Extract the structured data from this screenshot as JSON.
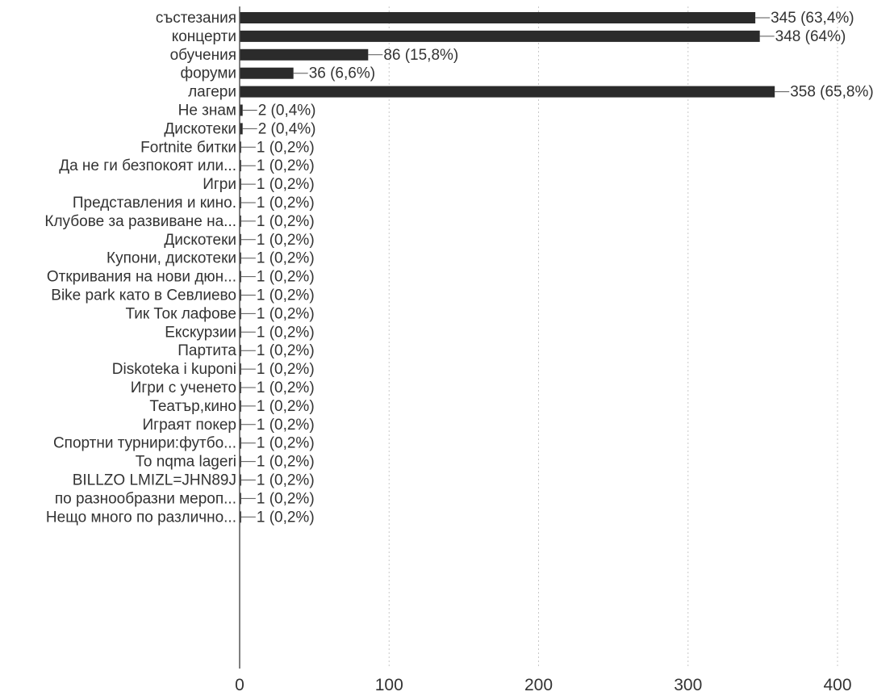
{
  "chart_data": {
    "type": "bar",
    "orientation": "horizontal",
    "colors": {
      "bar": "#2b2b2b",
      "grid": "#c8c8c8",
      "text": "#333333"
    },
    "xlim": [
      0,
      400
    ],
    "xticks": [
      0,
      100,
      200,
      300,
      400
    ],
    "grid": true,
    "bars": [
      {
        "category": "състезания",
        "value": 345,
        "label": "345 (63,4%)"
      },
      {
        "category": "концерти",
        "value": 348,
        "label": "348 (64%)"
      },
      {
        "category": "обучения",
        "value": 86,
        "label": "86 (15,8%)"
      },
      {
        "category": "форуми",
        "value": 36,
        "label": "36 (6,6%)"
      },
      {
        "category": "лагери",
        "value": 358,
        "label": "358 (65,8%)"
      },
      {
        "category": "Не знам",
        "value": 2,
        "label": "2 (0,4%)"
      },
      {
        "category": "Дискотеки",
        "value": 2,
        "label": "2 (0,4%)"
      },
      {
        "category": "Fortnite битки",
        "value": 1,
        "label": "1 (0,2%)"
      },
      {
        "category": "Да не ги безпокоят или...",
        "value": 1,
        "label": "1 (0,2%)"
      },
      {
        "category": "Игри",
        "value": 1,
        "label": "1 (0,2%)"
      },
      {
        "category": "Представления и кино.",
        "value": 1,
        "label": "1 (0,2%)"
      },
      {
        "category": "Клубове за развиване на...",
        "value": 1,
        "label": "1 (0,2%)"
      },
      {
        "category": "Дискотеки",
        "value": 1,
        "label": "1 (0,2%)"
      },
      {
        "category": "Купони, дискотеки",
        "value": 1,
        "label": "1 (0,2%)"
      },
      {
        "category": "Откривания на нови дюн...",
        "value": 1,
        "label": "1 (0,2%)"
      },
      {
        "category": "Bike park като в Севлиево",
        "value": 1,
        "label": "1 (0,2%)"
      },
      {
        "category": "Тик Ток лафове",
        "value": 1,
        "label": "1 (0,2%)"
      },
      {
        "category": "Екскурзии",
        "value": 1,
        "label": "1 (0,2%)"
      },
      {
        "category": "Партита",
        "value": 1,
        "label": "1 (0,2%)"
      },
      {
        "category": "Diskoteka i kuponi",
        "value": 1,
        "label": "1 (0,2%)"
      },
      {
        "category": "Игри с ученето",
        "value": 1,
        "label": "1 (0,2%)"
      },
      {
        "category": "Театър,кино",
        "value": 1,
        "label": "1 (0,2%)"
      },
      {
        "category": "Играят покер",
        "value": 1,
        "label": "1 (0,2%)"
      },
      {
        "category": "Спортни турнири:футбо...",
        "value": 1,
        "label": "1 (0,2%)"
      },
      {
        "category": "То nqma lageri",
        "value": 1,
        "label": "1 (0,2%)"
      },
      {
        "category": "BILLZO LMIZL=JHN89J",
        "value": 1,
        "label": "1 (0,2%)"
      },
      {
        "category": "по разнообразни мероп...",
        "value": 1,
        "label": "1 (0,2%)"
      },
      {
        "category": "Нещо много по различно...",
        "value": 1,
        "label": "1 (0,2%)"
      }
    ]
  }
}
